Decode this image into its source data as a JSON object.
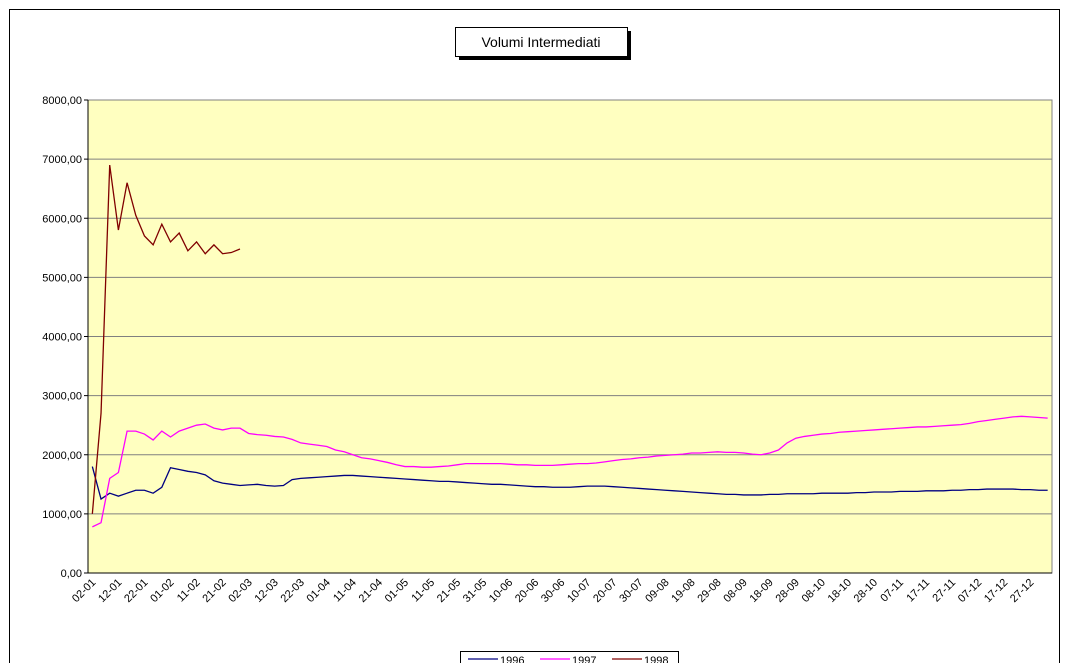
{
  "chart_data": {
    "type": "line",
    "title": "Volumi Intermediati",
    "categories": [
      "02-01",
      null,
      null,
      "12-01",
      null,
      null,
      "22-01",
      null,
      null,
      "01-02",
      null,
      null,
      "11-02",
      null,
      null,
      "21-02",
      null,
      null,
      "02-03",
      null,
      null,
      "12-03",
      null,
      null,
      "22-03",
      null,
      null,
      "01-04",
      null,
      null,
      "11-04",
      null,
      null,
      "21-04",
      null,
      null,
      "01-05",
      null,
      null,
      "11-05",
      null,
      null,
      "21-05",
      null,
      null,
      "31-05",
      null,
      null,
      "10-06",
      null,
      null,
      "20-06",
      null,
      null,
      "30-06",
      null,
      null,
      "10-07",
      null,
      null,
      "20-07",
      null,
      null,
      "30-07",
      null,
      null,
      "09-08",
      null,
      null,
      "19-08",
      null,
      null,
      "29-08",
      null,
      null,
      "08-09",
      null,
      null,
      "18-09",
      null,
      null,
      "28-09",
      null,
      null,
      "08-10",
      null,
      null,
      "18-10",
      null,
      null,
      "28-10",
      null,
      null,
      "07-11",
      null,
      null,
      "17-11",
      null,
      null,
      "27-11",
      null,
      null,
      "07-12",
      null,
      null,
      "17-12",
      null,
      null,
      "27-12",
      null,
      null
    ],
    "series": [
      {
        "name": "1996",
        "color": "#000080",
        "values": [
          1800,
          1250,
          1350,
          1300,
          1350,
          1400,
          1400,
          1350,
          1450,
          1780,
          1750,
          1720,
          1700,
          1660,
          1560,
          1520,
          1500,
          1480,
          1490,
          1500,
          1480,
          1470,
          1480,
          1580,
          1600,
          1610,
          1620,
          1630,
          1640,
          1650,
          1650,
          1640,
          1630,
          1620,
          1610,
          1600,
          1590,
          1580,
          1570,
          1560,
          1550,
          1550,
          1540,
          1530,
          1520,
          1510,
          1500,
          1500,
          1490,
          1480,
          1470,
          1460,
          1460,
          1450,
          1450,
          1450,
          1460,
          1470,
          1470,
          1470,
          1460,
          1450,
          1440,
          1430,
          1420,
          1410,
          1400,
          1390,
          1380,
          1370,
          1360,
          1350,
          1340,
          1330,
          1330,
          1320,
          1320,
          1320,
          1330,
          1330,
          1340,
          1340,
          1340,
          1340,
          1350,
          1350,
          1350,
          1350,
          1360,
          1360,
          1370,
          1370,
          1370,
          1380,
          1380,
          1380,
          1390,
          1390,
          1390,
          1400,
          1400,
          1410,
          1410,
          1420,
          1420,
          1420,
          1420,
          1410,
          1410,
          1400,
          1400
        ]
      },
      {
        "name": "1997",
        "color": "#ff00ff",
        "values": [
          780,
          850,
          1600,
          1700,
          2400,
          2400,
          2350,
          2250,
          2400,
          2300,
          2400,
          2450,
          2500,
          2520,
          2450,
          2420,
          2450,
          2450,
          2360,
          2340,
          2330,
          2310,
          2300,
          2260,
          2200,
          2180,
          2160,
          2140,
          2080,
          2050,
          2000,
          1950,
          1930,
          1900,
          1870,
          1830,
          1800,
          1800,
          1790,
          1790,
          1800,
          1810,
          1830,
          1850,
          1850,
          1850,
          1850,
          1850,
          1840,
          1830,
          1830,
          1820,
          1820,
          1820,
          1830,
          1840,
          1850,
          1850,
          1860,
          1880,
          1900,
          1920,
          1930,
          1950,
          1960,
          1980,
          1990,
          2000,
          2010,
          2030,
          2030,
          2040,
          2050,
          2040,
          2040,
          2030,
          2010,
          2000,
          2030,
          2080,
          2200,
          2280,
          2310,
          2330,
          2350,
          2360,
          2380,
          2390,
          2400,
          2410,
          2420,
          2430,
          2440,
          2450,
          2460,
          2470,
          2470,
          2480,
          2490,
          2500,
          2510,
          2530,
          2560,
          2580,
          2600,
          2620,
          2640,
          2650,
          2640,
          2630,
          2620
        ]
      },
      {
        "name": "1998",
        "color": "#800000",
        "values": [
          1000,
          2700,
          6900,
          5800,
          6600,
          6050,
          5700,
          5550,
          5900,
          5600,
          5750,
          5450,
          5600,
          5400,
          5550,
          5400,
          5420,
          5480,
          null,
          null,
          null,
          null,
          null,
          null,
          null,
          null,
          null,
          null,
          null,
          null,
          null,
          null,
          null,
          null,
          null,
          null,
          null,
          null,
          null,
          null,
          null,
          null,
          null,
          null,
          null,
          null,
          null,
          null,
          null,
          null,
          null,
          null,
          null,
          null,
          null,
          null,
          null,
          null,
          null,
          null,
          null,
          null,
          null,
          null,
          null,
          null,
          null,
          null,
          null,
          null,
          null,
          null,
          null,
          null,
          null,
          null,
          null,
          null,
          null,
          null,
          null,
          null,
          null,
          null,
          null,
          null,
          null,
          null,
          null,
          null,
          null,
          null,
          null,
          null,
          null,
          null,
          null,
          null,
          null,
          null,
          null,
          null,
          null,
          null,
          null,
          null,
          null,
          null,
          null,
          null,
          null
        ]
      }
    ],
    "ylim": [
      0,
      8000
    ],
    "yticks": [
      {
        "value": 0,
        "label": "0,00"
      },
      {
        "value": 1000,
        "label": "1000,00"
      },
      {
        "value": 2000,
        "label": "2000,00"
      },
      {
        "value": 3000,
        "label": "3000,00"
      },
      {
        "value": 4000,
        "label": "4000,00"
      },
      {
        "value": 5000,
        "label": "5000,00"
      },
      {
        "value": 6000,
        "label": "6000,00"
      },
      {
        "value": 7000,
        "label": "7000,00"
      },
      {
        "value": 8000,
        "label": "8000,00"
      }
    ],
    "grid": true,
    "background": "#ffffc0",
    "legend": "bottom"
  }
}
